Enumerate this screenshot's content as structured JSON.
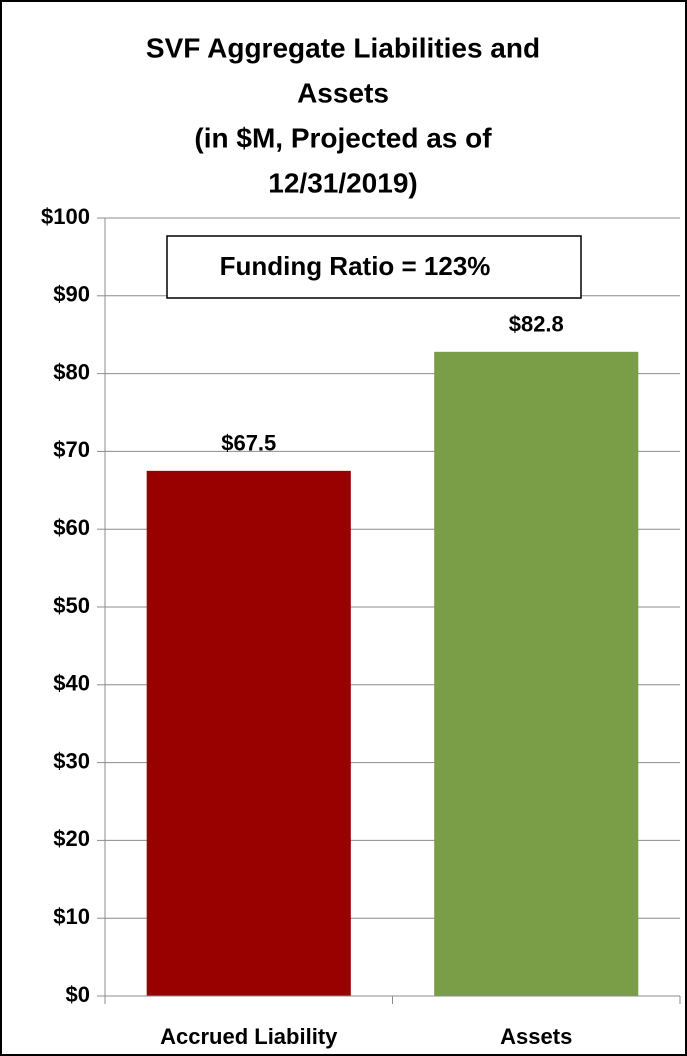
{
  "chart_data": {
    "type": "bar",
    "title": [
      "SVF Aggregate Liabilities and",
      "Assets",
      "(in $M, Projected as of",
      "12/31/2019)"
    ],
    "annotation": "Funding Ratio = 123%",
    "categories": [
      "Accrued Liability",
      "Assets"
    ],
    "values": [
      67.5,
      82.8
    ],
    "value_labels": [
      "$67.5",
      "$82.8"
    ],
    "colors": [
      "#990000",
      "#7a9e48"
    ],
    "ylim": [
      0,
      100
    ],
    "yticks": [
      {
        "value": 0,
        "label": "$0"
      },
      {
        "value": 10,
        "label": "$10"
      },
      {
        "value": 20,
        "label": "$20"
      },
      {
        "value": 30,
        "label": "$30"
      },
      {
        "value": 40,
        "label": "$40"
      },
      {
        "value": 50,
        "label": "$50"
      },
      {
        "value": 60,
        "label": "$60"
      },
      {
        "value": 70,
        "label": "$70"
      },
      {
        "value": 80,
        "label": "$80"
      },
      {
        "value": 90,
        "label": "$90"
      },
      {
        "value": 100,
        "label": "$100"
      }
    ],
    "grid": true
  }
}
